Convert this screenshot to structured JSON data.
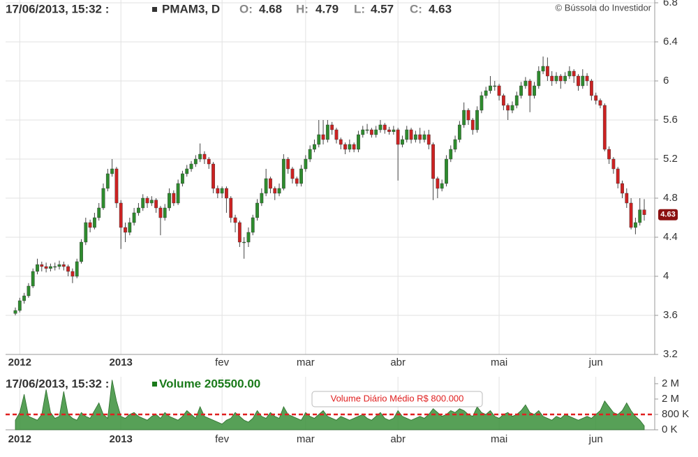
{
  "chart_data": {
    "type": "candlestick",
    "header": {
      "datetime": "17/06/2013, 15:32 :",
      "symbol": "PMAM3, D",
      "open_label": "O:",
      "high_label": "H:",
      "low_label": "L:",
      "close_label": "C:"
    },
    "watermark": "© Bússola do Investidor",
    "up_color": "#2e8b2e",
    "down_color": "#cc2222",
    "ylim": [
      3.2,
      6.8
    ],
    "yticks": [
      3.2,
      3.6,
      4,
      4.4,
      4.8,
      5.2,
      5.6,
      6,
      6.4,
      6.8
    ],
    "grid": true,
    "xticks": [
      {
        "value": 1,
        "label": "2012"
      },
      {
        "value": 24,
        "label": "2013"
      },
      {
        "value": 47,
        "label": "fev"
      },
      {
        "value": 66,
        "label": "mar"
      },
      {
        "value": 87,
        "label": "abr"
      },
      {
        "value": 110,
        "label": "mai"
      },
      {
        "value": 132,
        "label": "jun"
      }
    ],
    "ohlc": [
      [
        3.62,
        3.68,
        3.6,
        3.65
      ],
      [
        3.65,
        3.78,
        3.63,
        3.75
      ],
      [
        3.75,
        3.83,
        3.72,
        3.8
      ],
      [
        3.8,
        3.93,
        3.78,
        3.9
      ],
      [
        3.9,
        4.08,
        3.88,
        4.05
      ],
      [
        4.05,
        4.18,
        4.02,
        4.12
      ],
      [
        4.12,
        4.15,
        4.05,
        4.1
      ],
      [
        4.1,
        4.14,
        4.04,
        4.08
      ],
      [
        4.08,
        4.13,
        4.05,
        4.1
      ],
      [
        4.1,
        4.14,
        4.06,
        4.1
      ],
      [
        4.1,
        4.16,
        4.07,
        4.12
      ],
      [
        4.12,
        4.15,
        4.06,
        4.1
      ],
      [
        4.1,
        4.12,
        4.0,
        4.05
      ],
      [
        4.05,
        4.08,
        3.93,
        4.0
      ],
      [
        4.0,
        4.18,
        3.98,
        4.15
      ],
      [
        4.15,
        4.38,
        4.13,
        4.35
      ],
      [
        4.35,
        4.6,
        4.32,
        4.55
      ],
      [
        4.55,
        4.58,
        4.45,
        4.5
      ],
      [
        4.5,
        4.65,
        4.48,
        4.6
      ],
      [
        4.6,
        4.75,
        4.57,
        4.7
      ],
      [
        4.7,
        4.95,
        4.68,
        4.9
      ],
      [
        4.9,
        5.1,
        4.87,
        5.05
      ],
      [
        5.05,
        5.2,
        5.02,
        5.1
      ],
      [
        5.1,
        5.12,
        4.7,
        4.75
      ],
      [
        4.75,
        4.78,
        4.28,
        4.5
      ],
      [
        4.5,
        4.55,
        4.35,
        4.45
      ],
      [
        4.45,
        4.6,
        4.42,
        4.55
      ],
      [
        4.55,
        4.7,
        4.52,
        4.65
      ],
      [
        4.65,
        4.75,
        4.62,
        4.7
      ],
      [
        4.7,
        4.84,
        4.67,
        4.8
      ],
      [
        4.8,
        4.82,
        4.7,
        4.75
      ],
      [
        4.75,
        4.82,
        4.72,
        4.78
      ],
      [
        4.78,
        4.8,
        4.65,
        4.7
      ],
      [
        4.7,
        4.72,
        4.42,
        4.6
      ],
      [
        4.6,
        4.74,
        4.57,
        4.7
      ],
      [
        4.7,
        4.9,
        4.67,
        4.85
      ],
      [
        4.85,
        4.88,
        4.72,
        4.75
      ],
      [
        4.75,
        4.99,
        4.73,
        4.95
      ],
      [
        4.95,
        5.08,
        4.92,
        5.05
      ],
      [
        5.05,
        5.14,
        5.02,
        5.1
      ],
      [
        5.1,
        5.18,
        5.07,
        5.15
      ],
      [
        5.15,
        5.24,
        5.12,
        5.2
      ],
      [
        5.2,
        5.36,
        5.17,
        5.25
      ],
      [
        5.25,
        5.28,
        5.15,
        5.2
      ],
      [
        5.2,
        5.22,
        5.1,
        5.15
      ],
      [
        5.15,
        5.17,
        4.85,
        4.9
      ],
      [
        4.9,
        4.93,
        4.8,
        4.85
      ],
      [
        4.85,
        4.92,
        4.8,
        4.9
      ],
      [
        4.9,
        4.92,
        4.65,
        4.8
      ],
      [
        4.8,
        4.82,
        4.55,
        4.6
      ],
      [
        4.6,
        4.63,
        4.45,
        4.55
      ],
      [
        4.55,
        4.57,
        4.3,
        4.35
      ],
      [
        4.35,
        4.4,
        4.18,
        4.35
      ],
      [
        4.35,
        4.5,
        4.3,
        4.45
      ],
      [
        4.45,
        4.63,
        4.42,
        4.6
      ],
      [
        4.6,
        4.79,
        4.57,
        4.75
      ],
      [
        4.75,
        4.9,
        4.72,
        4.85
      ],
      [
        4.85,
        5.1,
        4.82,
        5.0
      ],
      [
        5.0,
        5.02,
        4.85,
        4.9
      ],
      [
        4.9,
        4.92,
        4.78,
        4.85
      ],
      [
        4.85,
        4.95,
        4.82,
        4.9
      ],
      [
        4.9,
        5.25,
        4.88,
        5.2
      ],
      [
        5.2,
        5.22,
        5.05,
        5.1
      ],
      [
        5.1,
        5.12,
        4.95,
        5.0
      ],
      [
        5.0,
        5.02,
        4.92,
        4.95
      ],
      [
        4.95,
        5.14,
        4.92,
        5.1
      ],
      [
        5.1,
        5.24,
        5.07,
        5.2
      ],
      [
        5.2,
        5.34,
        5.17,
        5.3
      ],
      [
        5.3,
        5.4,
        5.27,
        5.35
      ],
      [
        5.35,
        5.6,
        5.32,
        5.45
      ],
      [
        5.45,
        5.6,
        5.35,
        5.4
      ],
      [
        5.4,
        5.6,
        5.37,
        5.55
      ],
      [
        5.55,
        5.58,
        5.45,
        5.5
      ],
      [
        5.5,
        5.52,
        5.36,
        5.4
      ],
      [
        5.4,
        5.42,
        5.3,
        5.35
      ],
      [
        5.35,
        5.37,
        5.25,
        5.3
      ],
      [
        5.3,
        5.4,
        5.27,
        5.35
      ],
      [
        5.35,
        5.37,
        5.27,
        5.3
      ],
      [
        5.3,
        5.49,
        5.27,
        5.45
      ],
      [
        5.45,
        5.54,
        5.42,
        5.5
      ],
      [
        5.5,
        5.56,
        5.46,
        5.5
      ],
      [
        5.5,
        5.52,
        5.42,
        5.45
      ],
      [
        5.45,
        5.54,
        5.42,
        5.5
      ],
      [
        5.5,
        5.6,
        5.47,
        5.55
      ],
      [
        5.55,
        5.57,
        5.46,
        5.5
      ],
      [
        5.5,
        5.53,
        5.45,
        5.48
      ],
      [
        5.48,
        5.54,
        5.45,
        5.5
      ],
      [
        5.5,
        5.52,
        4.98,
        5.35
      ],
      [
        5.35,
        5.44,
        5.32,
        5.4
      ],
      [
        5.4,
        5.54,
        5.37,
        5.5
      ],
      [
        5.5,
        5.52,
        5.36,
        5.4
      ],
      [
        5.4,
        5.49,
        5.37,
        5.45
      ],
      [
        5.45,
        5.52,
        5.36,
        5.4
      ],
      [
        5.4,
        5.49,
        5.37,
        5.45
      ],
      [
        5.45,
        5.5,
        5.3,
        5.35
      ],
      [
        5.35,
        5.37,
        4.78,
        5.0
      ],
      [
        5.0,
        5.02,
        4.8,
        4.9
      ],
      [
        4.9,
        4.99,
        4.87,
        4.95
      ],
      [
        4.95,
        5.24,
        4.92,
        5.2
      ],
      [
        5.2,
        5.34,
        5.17,
        5.3
      ],
      [
        5.3,
        5.44,
        5.27,
        5.4
      ],
      [
        5.4,
        5.59,
        5.37,
        5.55
      ],
      [
        5.55,
        5.78,
        5.52,
        5.7
      ],
      [
        5.7,
        5.72,
        5.55,
        5.6
      ],
      [
        5.6,
        5.62,
        5.45,
        5.5
      ],
      [
        5.5,
        5.74,
        5.47,
        5.7
      ],
      [
        5.7,
        5.89,
        5.67,
        5.85
      ],
      [
        5.85,
        5.94,
        5.82,
        5.9
      ],
      [
        5.9,
        6.05,
        5.87,
        5.95
      ],
      [
        5.95,
        6.0,
        5.9,
        5.95
      ],
      [
        5.95,
        5.97,
        5.8,
        5.85
      ],
      [
        5.85,
        5.87,
        5.7,
        5.75
      ],
      [
        5.75,
        5.77,
        5.6,
        5.7
      ],
      [
        5.7,
        5.79,
        5.67,
        5.75
      ],
      [
        5.75,
        5.89,
        5.72,
        5.85
      ],
      [
        5.85,
        5.99,
        5.82,
        5.95
      ],
      [
        5.95,
        6.04,
        5.92,
        6.0
      ],
      [
        6.0,
        6.02,
        5.68,
        5.85
      ],
      [
        5.85,
        5.99,
        5.82,
        5.95
      ],
      [
        5.95,
        6.15,
        5.92,
        6.1
      ],
      [
        6.1,
        6.25,
        6.07,
        6.15
      ],
      [
        6.15,
        6.24,
        6.0,
        6.05
      ],
      [
        6.05,
        6.1,
        5.95,
        6.0
      ],
      [
        6.0,
        6.09,
        5.97,
        6.05
      ],
      [
        6.05,
        6.07,
        5.92,
        6.0
      ],
      [
        6.0,
        6.09,
        5.97,
        6.05
      ],
      [
        6.05,
        6.15,
        6.02,
        6.1
      ],
      [
        6.1,
        6.12,
        5.98,
        6.05
      ],
      [
        6.05,
        6.07,
        5.9,
        5.95
      ],
      [
        5.95,
        6.12,
        5.92,
        6.05
      ],
      [
        6.05,
        6.08,
        5.95,
        6.0
      ],
      [
        6.0,
        6.02,
        5.8,
        5.85
      ],
      [
        5.85,
        5.88,
        5.76,
        5.8
      ],
      [
        5.8,
        5.82,
        5.72,
        5.75
      ],
      [
        5.75,
        5.77,
        5.28,
        5.3
      ],
      [
        5.3,
        5.33,
        5.15,
        5.2
      ],
      [
        5.2,
        5.22,
        5.05,
        5.1
      ],
      [
        5.1,
        5.12,
        4.9,
        4.95
      ],
      [
        4.95,
        4.98,
        4.8,
        4.85
      ],
      [
        4.85,
        4.9,
        4.7,
        4.75
      ],
      [
        4.75,
        4.8,
        4.48,
        4.5
      ],
      [
        4.5,
        4.6,
        4.43,
        4.55
      ],
      [
        4.55,
        4.8,
        4.52,
        4.68
      ],
      [
        4.68,
        4.79,
        4.57,
        4.63
      ]
    ],
    "volume": {
      "type": "area",
      "legend": "Volume 205500.00",
      "color": "#3a8f3a",
      "ylim": [
        0,
        2760000
      ],
      "yticks": [
        {
          "value": 2400000,
          "label": "2 M"
        },
        {
          "value": 1600000,
          "label": "2 M"
        },
        {
          "value": 800000,
          "label": "800 K"
        },
        {
          "value": 0,
          "label": "0 K"
        }
      ],
      "average": 800000,
      "average_label": "Volume Diário Médio R$ 800.000",
      "average_color": "#e02020",
      "values": [
        500000,
        900000,
        1850000,
        700000,
        600000,
        500000,
        800000,
        2100000,
        900000,
        600000,
        700000,
        2000000,
        800000,
        600000,
        500000,
        900000,
        700000,
        600000,
        1000000,
        1400000,
        800000,
        600000,
        2600000,
        1500000,
        700000,
        600000,
        800000,
        900000,
        700000,
        600000,
        500000,
        700000,
        800000,
        600000,
        900000,
        700000,
        600000,
        500000,
        700000,
        1000000,
        800000,
        600000,
        1200000,
        700000,
        600000,
        500000,
        400000,
        300000,
        500000,
        600000,
        900000,
        700000,
        500000,
        400000,
        600000,
        1000000,
        700000,
        600000,
        900000,
        700000,
        600000,
        1200000,
        800000,
        700000,
        600000,
        500000,
        900000,
        700000,
        600000,
        800000,
        1000000,
        700000,
        600000,
        500000,
        700000,
        600000,
        500000,
        600000,
        700000,
        800000,
        600000,
        500000,
        700000,
        900000,
        600000,
        500000,
        600000,
        1000000,
        700000,
        600000,
        500000,
        600000,
        700000,
        600000,
        800000,
        1100000,
        900000,
        700000,
        800000,
        1000000,
        900000,
        1100000,
        1000000,
        800000,
        700000,
        1200000,
        900000,
        800000,
        1000000,
        700000,
        600000,
        800000,
        900000,
        700000,
        800000,
        1000000,
        1300000,
        900000,
        800000,
        1000000,
        700000,
        600000,
        500000,
        700000,
        600000,
        800000,
        700000,
        600000,
        500000,
        600000,
        700000,
        600000,
        800000,
        1000000,
        1500000,
        1200000,
        900000,
        800000,
        1000000,
        1400000,
        1000000,
        700000,
        500000,
        205500
      ]
    }
  }
}
